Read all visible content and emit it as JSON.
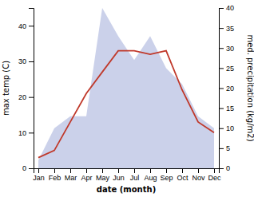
{
  "chart_data": {
    "type": "line",
    "xlabel": "date (month)",
    "ylabel": "max temp (C)",
    "y2label": "med. precipitation (kg/m2)",
    "categories": [
      "Jan",
      "Feb",
      "Mar",
      "Apr",
      "May",
      "Jun",
      "Jul",
      "Aug",
      "Sep",
      "Oct",
      "Nov",
      "Dec"
    ],
    "series": [
      {
        "type": "area",
        "axis": "y2",
        "color": "#c5cce8",
        "values": [
          2,
          10,
          13,
          13,
          40,
          33,
          27,
          33,
          25,
          21,
          13,
          10
        ]
      },
      {
        "type": "line",
        "axis": "y",
        "color": "#c0392b",
        "values": [
          3,
          5,
          13,
          21,
          27,
          33,
          33,
          32,
          33,
          22,
          13,
          10
        ]
      }
    ],
    "ylim": [
      0,
      45
    ],
    "yticks": [
      0,
      10,
      20,
      30,
      40
    ],
    "y2lim": [
      0,
      40
    ],
    "y2ticks": [
      0,
      5,
      10,
      15,
      20,
      25,
      30,
      35,
      40
    ],
    "grid": false
  }
}
